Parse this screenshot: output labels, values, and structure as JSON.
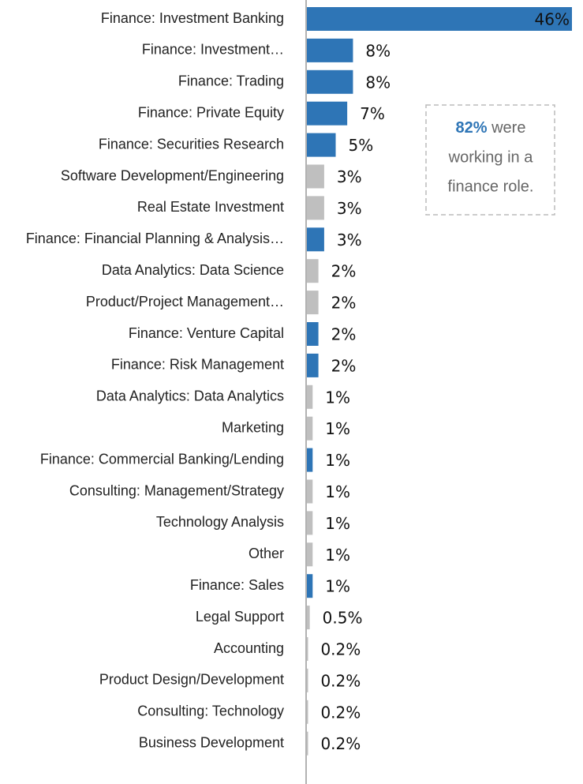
{
  "chart_data": {
    "type": "bar",
    "orientation": "horizontal",
    "categories": [
      "Finance: Investment Banking",
      "Finance: Investment…",
      "Finance: Trading",
      "Finance: Private Equity",
      "Finance: Securities Research",
      "Software Development/Engineering",
      "Real Estate Investment",
      "Finance: Financial Planning & Analysis…",
      "Data Analytics: Data Science",
      "Product/Project Management…",
      "Finance: Venture Capital",
      "Finance: Risk Management",
      "Data Analytics: Data Analytics",
      "Marketing",
      "Finance: Commercial Banking/Lending",
      "Consulting: Management/Strategy",
      "Technology Analysis",
      "Other",
      "Finance: Sales",
      "Legal Support",
      "Accounting",
      "Product Design/Development",
      "Consulting: Technology",
      "Business Development"
    ],
    "values": [
      46,
      8,
      8,
      7,
      5,
      3,
      3,
      3,
      2,
      2,
      2,
      2,
      1,
      1,
      1,
      1,
      1,
      1,
      1,
      0.5,
      0.2,
      0.2,
      0.2,
      0.2
    ],
    "value_labels": [
      "46%",
      "8%",
      "8%",
      "7%",
      "5%",
      "3%",
      "3%",
      "3%",
      "2%",
      "2%",
      "2%",
      "2%",
      "1%",
      "1%",
      "1%",
      "1%",
      "1%",
      "1%",
      "1%",
      "0.5%",
      "0.2%",
      "0.2%",
      "0.2%",
      "0.2%"
    ],
    "colors": [
      "#2e75b6",
      "#2e75b6",
      "#2e75b6",
      "#2e75b6",
      "#2e75b6",
      "#bfbfbf",
      "#bfbfbf",
      "#2e75b6",
      "#bfbfbf",
      "#bfbfbf",
      "#2e75b6",
      "#2e75b6",
      "#bfbfbf",
      "#bfbfbf",
      "#2e75b6",
      "#bfbfbf",
      "#bfbfbf",
      "#bfbfbf",
      "#2e75b6",
      "#bfbfbf",
      "#bfbfbf",
      "#bfbfbf",
      "#bfbfbf",
      "#bfbfbf"
    ],
    "annotation": {
      "highlight": "82%",
      "lines": [
        "were",
        "working in a",
        "finance role."
      ],
      "highlight_color": "#2e75b6"
    }
  }
}
